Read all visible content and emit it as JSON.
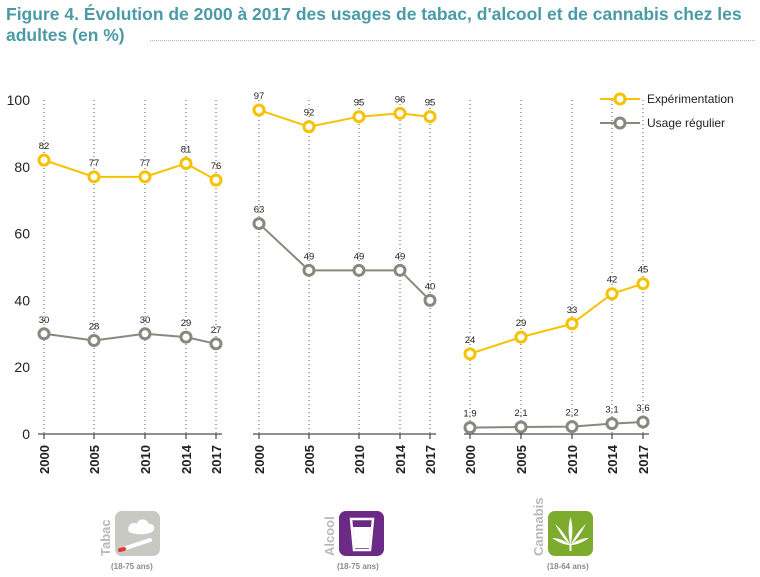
{
  "figure": {
    "title": "Figure 4. Évolution de 2000 à 2017 des usages de tabac, d'alcool et de cannabis chez les adultes (en %)"
  },
  "colors": {
    "experimentation": "#f5c200",
    "usage_regulier": "#8a877e",
    "tabac_icon": "#c9c9c4",
    "alcool_icon": "#6b2a86",
    "cannabis_icon": "#7cab2e"
  },
  "legend": {
    "experimentation": "Expérimentation",
    "usage_regulier": "Usage régulier"
  },
  "chart_data": {
    "type": "line",
    "title": "Figure 4. Évolution de 2000 à 2017 des usages de tabac, d'alcool et de cannabis chez les adultes (en %)",
    "ylim": [
      0,
      100
    ],
    "yticks": [
      "0",
      "20",
      "40",
      "60",
      "80",
      "100"
    ],
    "legend_position": "top-right",
    "categories": [
      "2000",
      "2005",
      "2010",
      "2014",
      "2017"
    ],
    "panels": [
      {
        "name": "Tabac",
        "age": "(18-75 ans)",
        "icon": "cigarette-icon",
        "series": [
          {
            "name": "Expérimentation",
            "values": [
              82,
              77,
              77,
              81,
              76
            ],
            "labels": [
              "82",
              "77",
              "77",
              "81",
              "76"
            ]
          },
          {
            "name": "Usage régulier",
            "values": [
              30,
              28,
              30,
              29,
              27
            ],
            "labels": [
              "30",
              "28",
              "30",
              "29",
              "27"
            ]
          }
        ]
      },
      {
        "name": "Alcool",
        "age": "(18-75 ans)",
        "icon": "glass-icon",
        "series": [
          {
            "name": "Expérimentation",
            "values": [
              97,
              92,
              95,
              96,
              95
            ],
            "labels": [
              "97",
              "92",
              "95",
              "96",
              "95"
            ]
          },
          {
            "name": "Usage régulier",
            "values": [
              63,
              49,
              49,
              49,
              40
            ],
            "labels": [
              "63",
              "49",
              "49",
              "49",
              "40"
            ]
          }
        ]
      },
      {
        "name": "Cannabis",
        "age": "(18-64 ans)",
        "icon": "cannabis-leaf-icon",
        "series": [
          {
            "name": "Expérimentation",
            "values": [
              24,
              29,
              33,
              42,
              45
            ],
            "labels": [
              "24",
              "29",
              "33",
              "42",
              "45"
            ]
          },
          {
            "name": "Usage régulier",
            "values": [
              1.9,
              2.1,
              2.2,
              3.1,
              3.6
            ],
            "labels": [
              "1,9",
              "2,1",
              "2,2",
              "3,1",
              "3,6"
            ]
          }
        ]
      }
    ]
  }
}
